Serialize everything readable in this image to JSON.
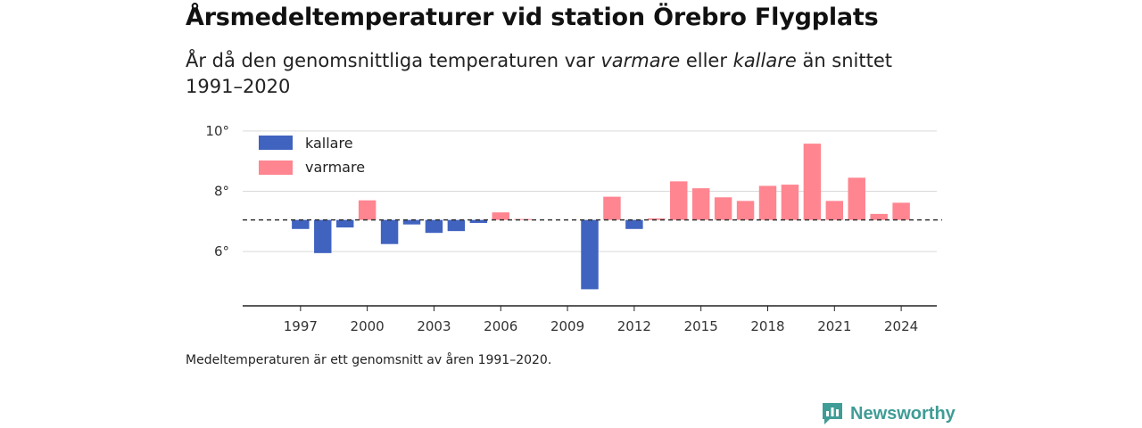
{
  "header": {
    "title": "Årsmedeltemperaturer vid station Örebro Flygplats",
    "subtitle_part1": "År då den genomsnittliga temperaturen var ",
    "subtitle_warm": "varmare",
    "subtitle_part2": " eller ",
    "subtitle_cold": "kallare",
    "subtitle_part3": " än snittet 1991–2020"
  },
  "footer": {
    "note": "Medeltemperaturen är ett genomsnitt av åren 1991–2020.",
    "brand": "Newsworthy"
  },
  "colors": {
    "colder": "#4063c0",
    "warmer": "#ff8590",
    "brand": "#3f9c96"
  },
  "chart_data": {
    "type": "bar",
    "baseline": 7.05,
    "baseline_style": "dashed",
    "ylim": [
      4.2,
      10.5
    ],
    "yticks": [
      6,
      8,
      10
    ],
    "ytick_labels": [
      "6°",
      "8°",
      "10°"
    ],
    "xlim": [
      1994.4,
      2025.6
    ],
    "xticks": [
      1997,
      2000,
      2003,
      2006,
      2009,
      2012,
      2015,
      2018,
      2021,
      2024
    ],
    "xtick_labels": [
      "1997",
      "2000",
      "2003",
      "2006",
      "2009",
      "2012",
      "2015",
      "2018",
      "2021",
      "2024"
    ],
    "grid": true,
    "legend": {
      "placement": "top-left",
      "entries": [
        {
          "label": "kallare",
          "color": "#4063c0"
        },
        {
          "label": "varmare",
          "color": "#ff8590"
        }
      ]
    },
    "series": [
      {
        "name": "kallare",
        "points": [
          {
            "year": 1997,
            "value": 6.75
          },
          {
            "year": 1998,
            "value": 5.95
          },
          {
            "year": 1999,
            "value": 6.8
          },
          {
            "year": 2001,
            "value": 6.25
          },
          {
            "year": 2002,
            "value": 6.9
          },
          {
            "year": 2003,
            "value": 6.62
          },
          {
            "year": 2004,
            "value": 6.68
          },
          {
            "year": 2005,
            "value": 6.95
          },
          {
            "year": 2010,
            "value": 4.75
          },
          {
            "year": 2012,
            "value": 6.75
          }
        ]
      },
      {
        "name": "varmare",
        "points": [
          {
            "year": 2000,
            "value": 7.7
          },
          {
            "year": 2006,
            "value": 7.3
          },
          {
            "year": 2007,
            "value": 7.08
          },
          {
            "year": 2011,
            "value": 7.82
          },
          {
            "year": 2013,
            "value": 7.1
          },
          {
            "year": 2014,
            "value": 8.33
          },
          {
            "year": 2015,
            "value": 8.1
          },
          {
            "year": 2016,
            "value": 7.8
          },
          {
            "year": 2017,
            "value": 7.68
          },
          {
            "year": 2018,
            "value": 8.18
          },
          {
            "year": 2019,
            "value": 8.22
          },
          {
            "year": 2020,
            "value": 9.58
          },
          {
            "year": 2021,
            "value": 7.68
          },
          {
            "year": 2022,
            "value": 8.45
          },
          {
            "year": 2023,
            "value": 7.25
          },
          {
            "year": 2024,
            "value": 7.62
          }
        ]
      }
    ]
  }
}
